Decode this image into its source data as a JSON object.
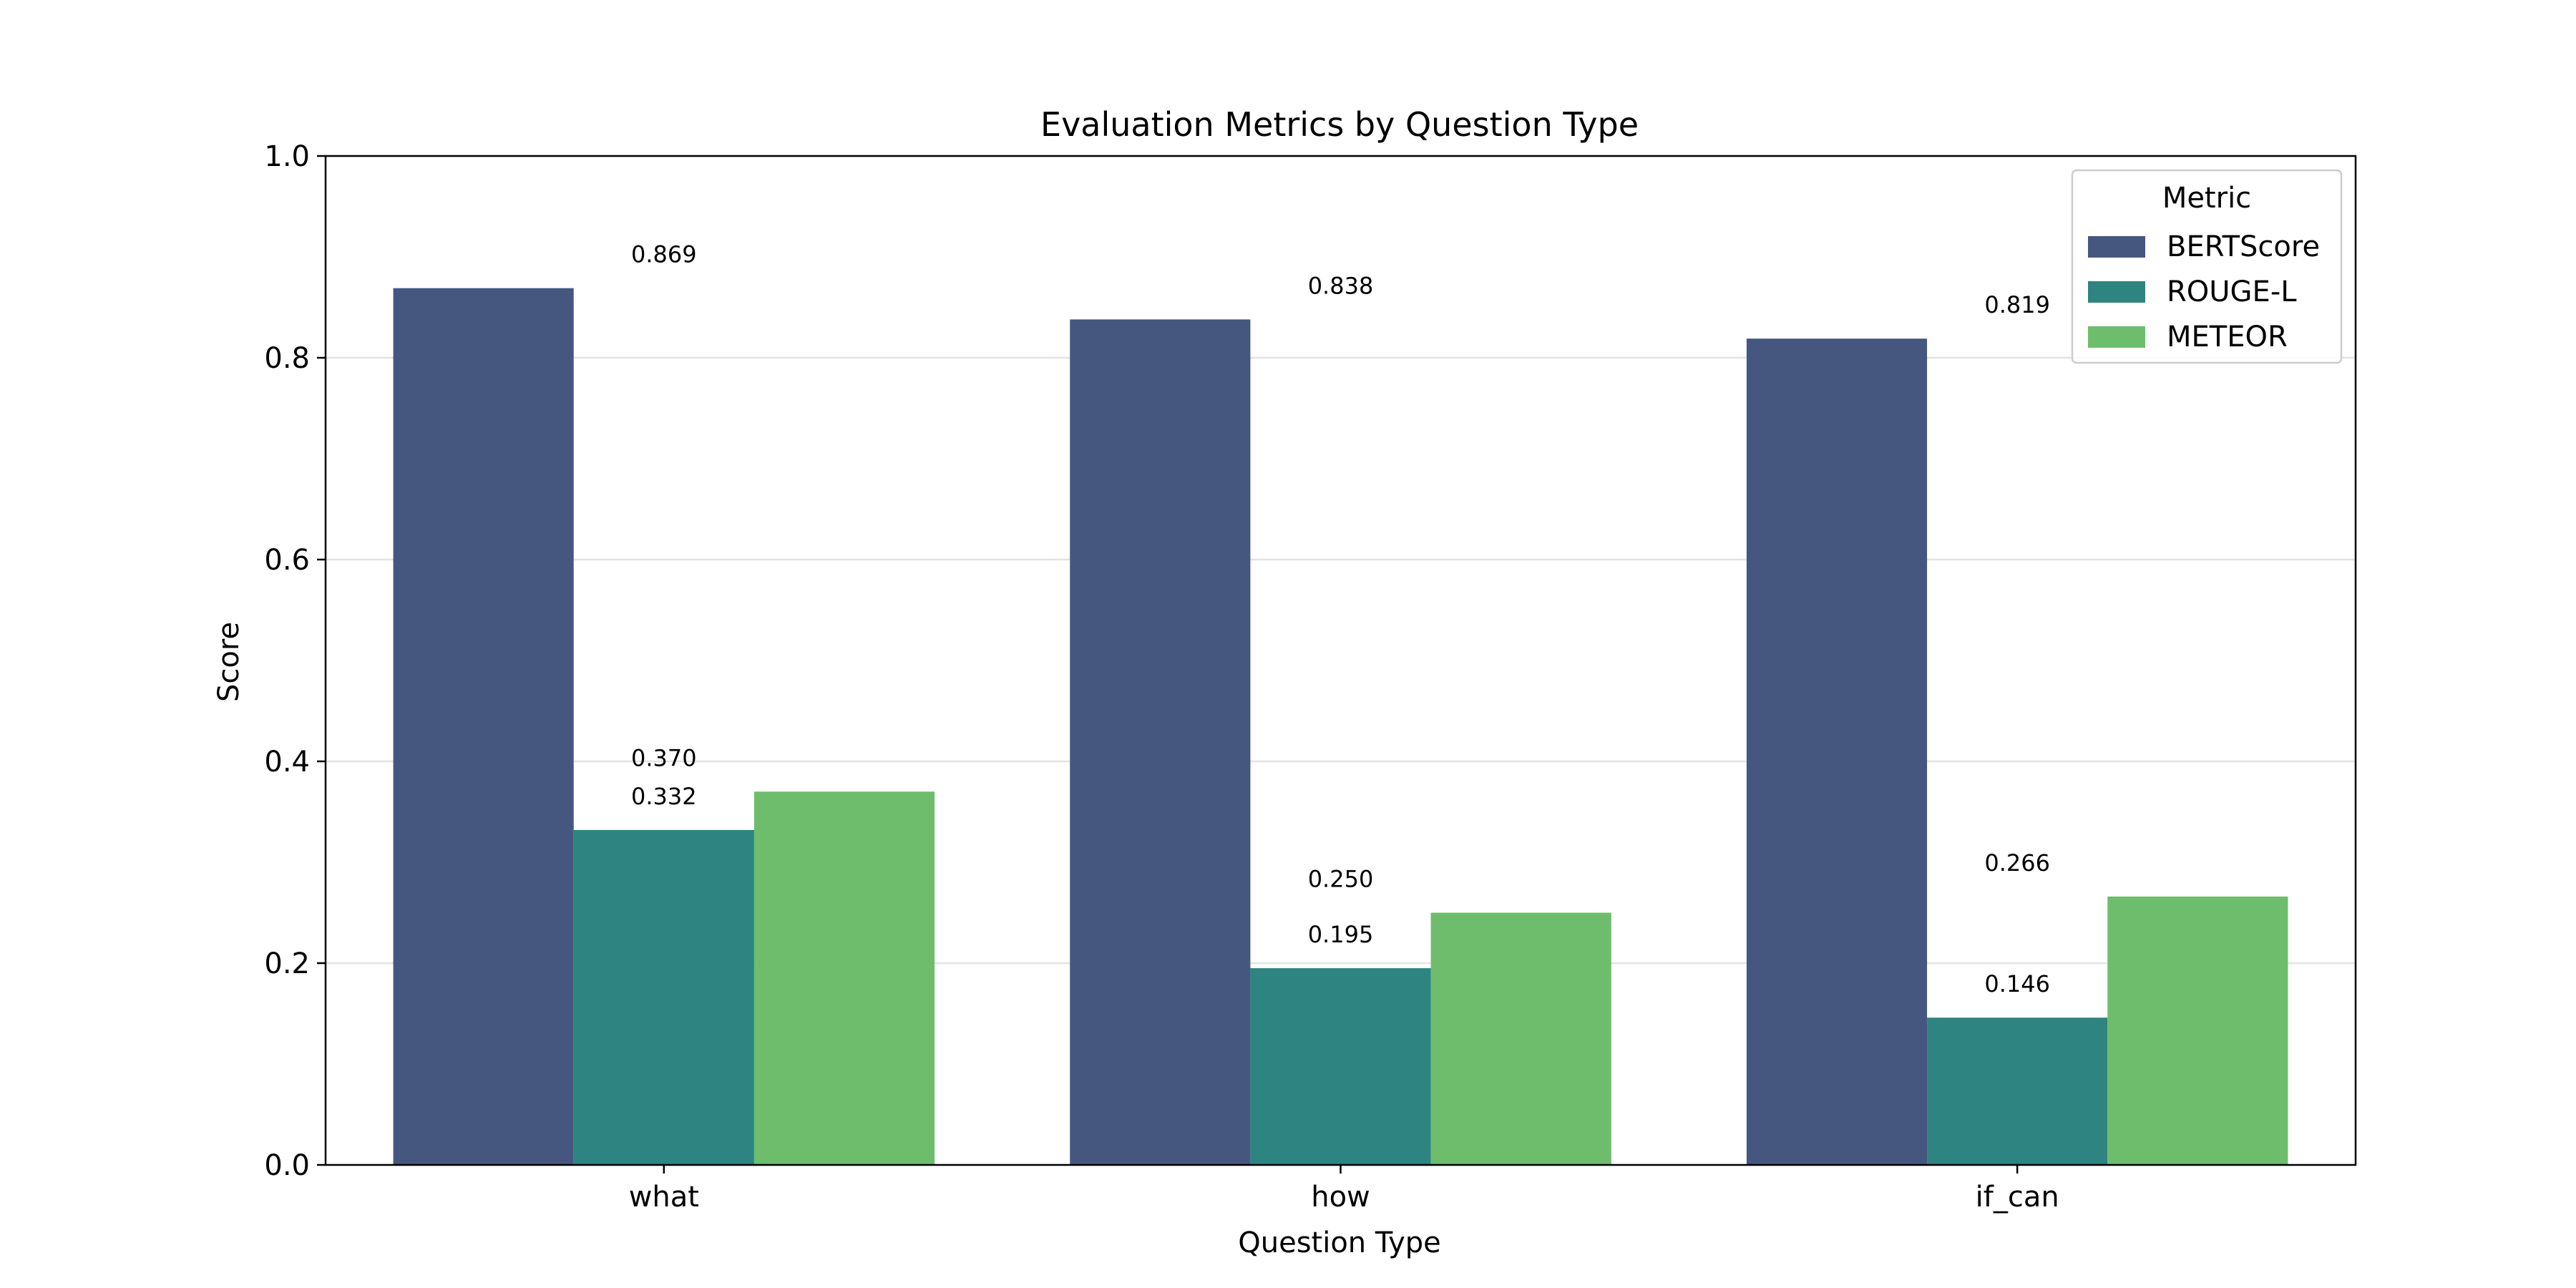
{
  "chart_data": {
    "type": "bar",
    "title": "Evaluation Metrics by Question Type",
    "xlabel": "Question Type",
    "ylabel": "Score",
    "ylim": [
      0,
      1.0
    ],
    "yticks": [
      "0.0",
      "0.2",
      "0.4",
      "0.6",
      "0.8",
      "1.0"
    ],
    "grid": "horizontal",
    "categories": [
      "what",
      "how",
      "if_can"
    ],
    "legend": {
      "title": "Metric",
      "position": "top-right"
    },
    "series": [
      {
        "name": "BERTScore",
        "color": "#46577f",
        "values": [
          0.869,
          0.838,
          0.819
        ],
        "labels": [
          "0.869",
          "0.838",
          "0.819"
        ]
      },
      {
        "name": "ROUGE-L",
        "color": "#2e8480",
        "values": [
          0.332,
          0.195,
          0.146
        ],
        "labels": [
          "0.332",
          "0.195",
          "0.146"
        ]
      },
      {
        "name": "METEOR",
        "color": "#6dbd6d",
        "values": [
          0.37,
          0.25,
          0.266
        ],
        "labels": [
          "0.370",
          "0.250",
          "0.266"
        ]
      }
    ]
  }
}
